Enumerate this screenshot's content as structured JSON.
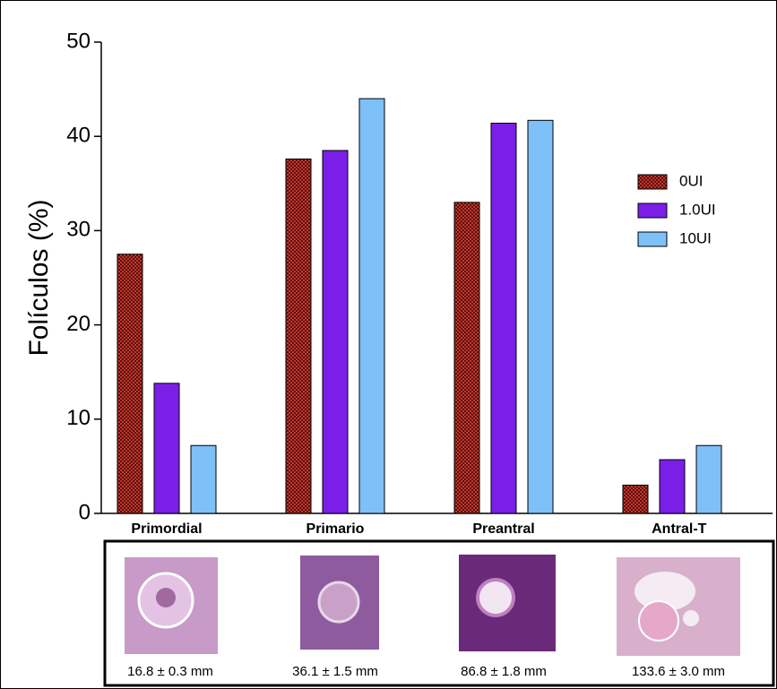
{
  "chart_data": {
    "type": "bar",
    "y_label": "Folículos (%)",
    "categories": [
      "Primordial",
      "Primario",
      "Preantral",
      "Antral-T"
    ],
    "series": [
      {
        "name": "0UI",
        "color": "#8b1a1a",
        "values": [
          27.5,
          37.6,
          33.0,
          3.0
        ]
      },
      {
        "name": "1.0UI",
        "color": "#7b1fe8",
        "values": [
          13.8,
          38.5,
          41.4,
          5.7
        ]
      },
      {
        "name": "10UI",
        "color": "#7ec0f8",
        "values": [
          7.2,
          44.0,
          41.7,
          7.2
        ]
      }
    ],
    "ylim": [
      0,
      50
    ],
    "yticks": [
      0,
      10,
      20,
      30,
      40,
      50
    ],
    "legend": "right"
  },
  "panel": {
    "captions": [
      "16.8 ± 0.3 mm",
      "36.1 ± 1.5 mm",
      "86.8 ± 1.8 mm",
      "133.6 ± 3.0 mm"
    ]
  }
}
